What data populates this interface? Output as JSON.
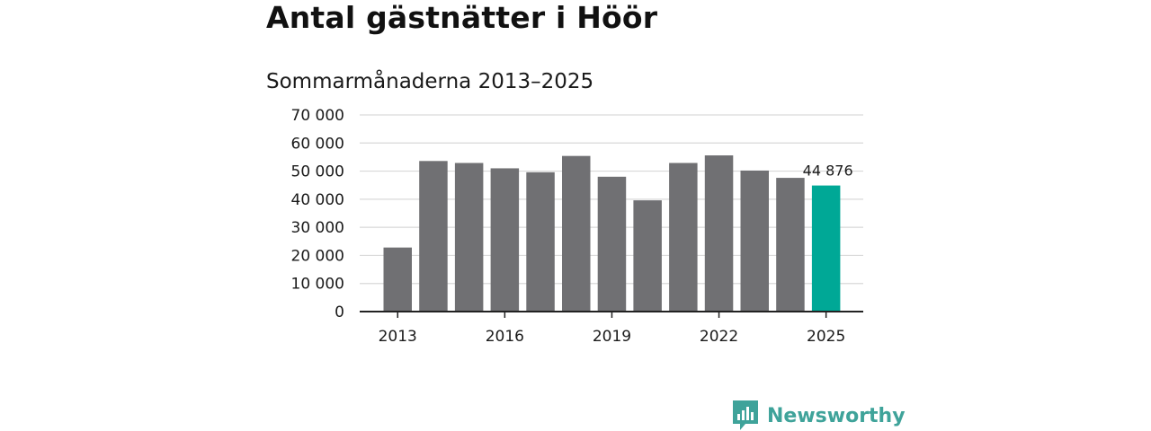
{
  "title": "Antal gästnätter i Höör",
  "subtitle": "Sommarmånaderna 2013–2025",
  "brand": {
    "name": "Newsworthy",
    "color": "#3fa39a",
    "icon": "newsworthy-logo-icon"
  },
  "colors": {
    "bar": "#707073",
    "highlight": "#00a896",
    "grid": "#d9d9d9",
    "axis": "#222222"
  },
  "chart_data": {
    "type": "bar",
    "title": "Antal gästnätter i Höör",
    "subtitle": "Sommarmånaderna 2013–2025",
    "xlabel": "",
    "ylabel": "",
    "categories": [
      "2013",
      "2014",
      "2015",
      "2016",
      "2017",
      "2018",
      "2019",
      "2020",
      "2021",
      "2022",
      "2023",
      "2024",
      "2025"
    ],
    "values": [
      22800,
      53600,
      52900,
      51000,
      49600,
      55400,
      48000,
      39600,
      52900,
      55600,
      50200,
      47600,
      44876
    ],
    "highlight_index": 12,
    "data_labels": [
      {
        "index": 12,
        "text": "44 876"
      }
    ],
    "ylim": [
      0,
      70000
    ],
    "y_ticks": [
      0,
      10000,
      20000,
      30000,
      40000,
      50000,
      60000,
      70000
    ],
    "y_tick_labels": [
      "0",
      "10 000",
      "20 000",
      "30 000",
      "40 000",
      "50 000",
      "60 000",
      "70 000"
    ],
    "x_tick_labels": [
      "2013",
      "2016",
      "2019",
      "2022",
      "2025"
    ],
    "grid": true,
    "legend": "none"
  }
}
